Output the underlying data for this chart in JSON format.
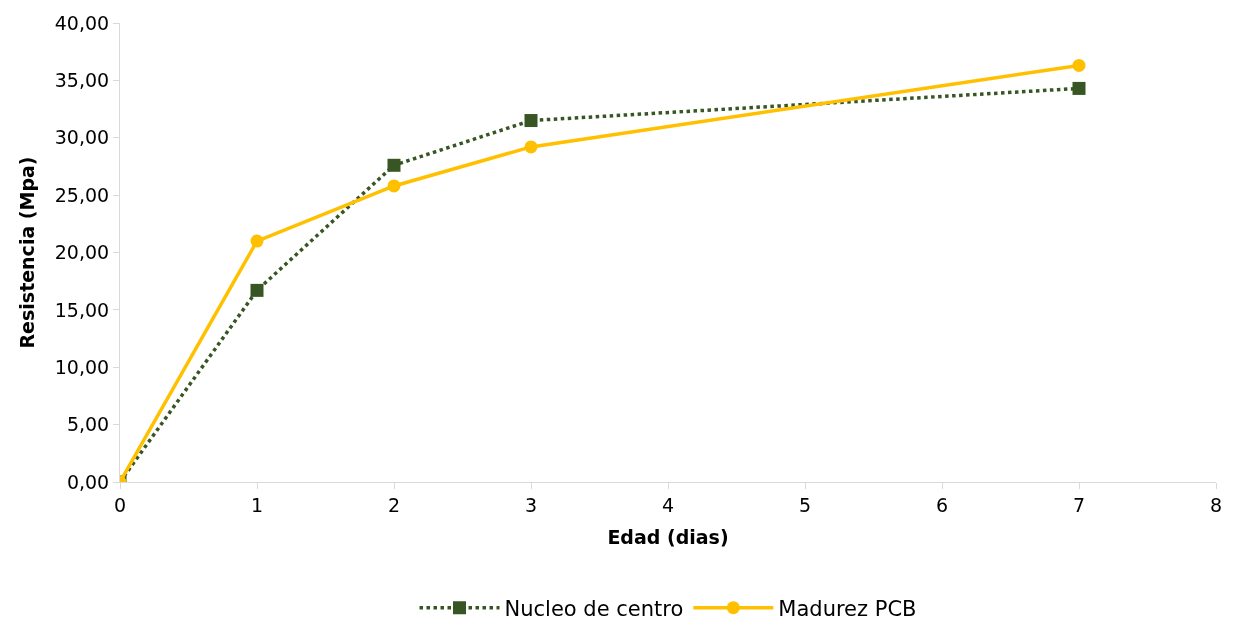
{
  "chart_data": {
    "type": "line",
    "xlabel": "Edad (dias)",
    "ylabel": "Resistencia (Mpa)",
    "x": [
      0,
      1,
      2,
      3,
      7
    ],
    "series": [
      {
        "name": "Nucleo de centro",
        "color": "#375623",
        "values": [
          0,
          16.7,
          27.6,
          31.5,
          34.3
        ],
        "marker": "square",
        "line_style": "dotted"
      },
      {
        "name": "Madurez PCB",
        "color": "#ffc000",
        "values": [
          0,
          21.0,
          25.8,
          29.2,
          36.3
        ],
        "marker": "circle",
        "line_style": "solid"
      }
    ],
    "xlim": [
      0,
      8
    ],
    "xticks": [
      0,
      1,
      2,
      3,
      4,
      5,
      6,
      7,
      8
    ],
    "ylim": [
      0,
      40
    ],
    "yticks": [
      {
        "value": 0,
        "label": "0,00"
      },
      {
        "value": 5,
        "label": "5,00"
      },
      {
        "value": 10,
        "label": "10,00"
      },
      {
        "value": 15,
        "label": "15,00"
      },
      {
        "value": 20,
        "label": "20,00"
      },
      {
        "value": 25,
        "label": "25,00"
      },
      {
        "value": 30,
        "label": "30,00"
      },
      {
        "value": 35,
        "label": "35,00"
      },
      {
        "value": 40,
        "label": "40,00"
      }
    ],
    "grid": false,
    "legend": "bottom"
  }
}
